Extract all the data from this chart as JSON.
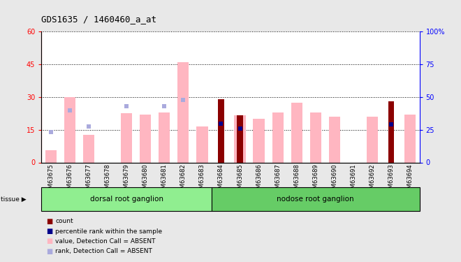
{
  "title": "GDS1635 / 1460460_a_at",
  "samples": [
    "GSM63675",
    "GSM63676",
    "GSM63677",
    "GSM63678",
    "GSM63679",
    "GSM63680",
    "GSM63681",
    "GSM63682",
    "GSM63683",
    "GSM63684",
    "GSM63685",
    "GSM63686",
    "GSM63687",
    "GSM63688",
    "GSM63689",
    "GSM63690",
    "GSM63691",
    "GSM63692",
    "GSM63693",
    "GSM63694"
  ],
  "value_absent": [
    5.5,
    30.0,
    12.5,
    null,
    22.5,
    22.0,
    23.0,
    46.0,
    16.5,
    null,
    21.5,
    20.0,
    23.0,
    27.5,
    23.0,
    21.0,
    null,
    21.0,
    null,
    22.0
  ],
  "rank_absent": [
    14.0,
    24.0,
    16.5,
    null,
    26.0,
    null,
    26.0,
    28.5,
    null,
    null,
    null,
    null,
    null,
    null,
    null,
    null,
    null,
    null,
    null,
    null
  ],
  "count_val": [
    null,
    null,
    null,
    null,
    null,
    null,
    null,
    null,
    null,
    29.0,
    21.5,
    null,
    null,
    null,
    null,
    null,
    null,
    null,
    28.0,
    null
  ],
  "rank_val": [
    null,
    null,
    null,
    null,
    null,
    null,
    null,
    null,
    null,
    29.5,
    26.0,
    null,
    null,
    null,
    null,
    null,
    null,
    null,
    29.0,
    null
  ],
  "rank_absent_right": [
    23.0,
    40.0,
    27.5,
    null,
    43.0,
    null,
    43.0,
    47.5,
    null,
    null,
    null,
    null,
    null,
    null,
    null,
    null,
    null,
    null,
    null,
    null
  ],
  "groups": [
    {
      "label": "dorsal root ganglion",
      "start": 0,
      "end": 9,
      "color": "#90EE90"
    },
    {
      "label": "nodose root ganglion",
      "start": 9,
      "end": 20,
      "color": "#66CC66"
    }
  ],
  "ylim_left": [
    0,
    60
  ],
  "ylim_right": [
    0,
    100
  ],
  "yticks_left": [
    0,
    15,
    30,
    45,
    60
  ],
  "ytick_labels_left": [
    "0",
    "15",
    "30",
    "45",
    "60"
  ],
  "yticks_right": [
    0,
    25,
    50,
    75,
    100
  ],
  "ytick_labels_right": [
    "0",
    "25",
    "50",
    "75",
    "100%"
  ],
  "color_count": "#8B0000",
  "color_rank": "#00008B",
  "color_value_absent": "#FFB6C1",
  "color_rank_absent": "#AAAADD",
  "bg_color": "#E8E8E8",
  "plot_bg": "#FFFFFF",
  "legend_labels": [
    "count",
    "percentile rank within the sample",
    "value, Detection Call = ABSENT",
    "rank, Detection Call = ABSENT"
  ]
}
